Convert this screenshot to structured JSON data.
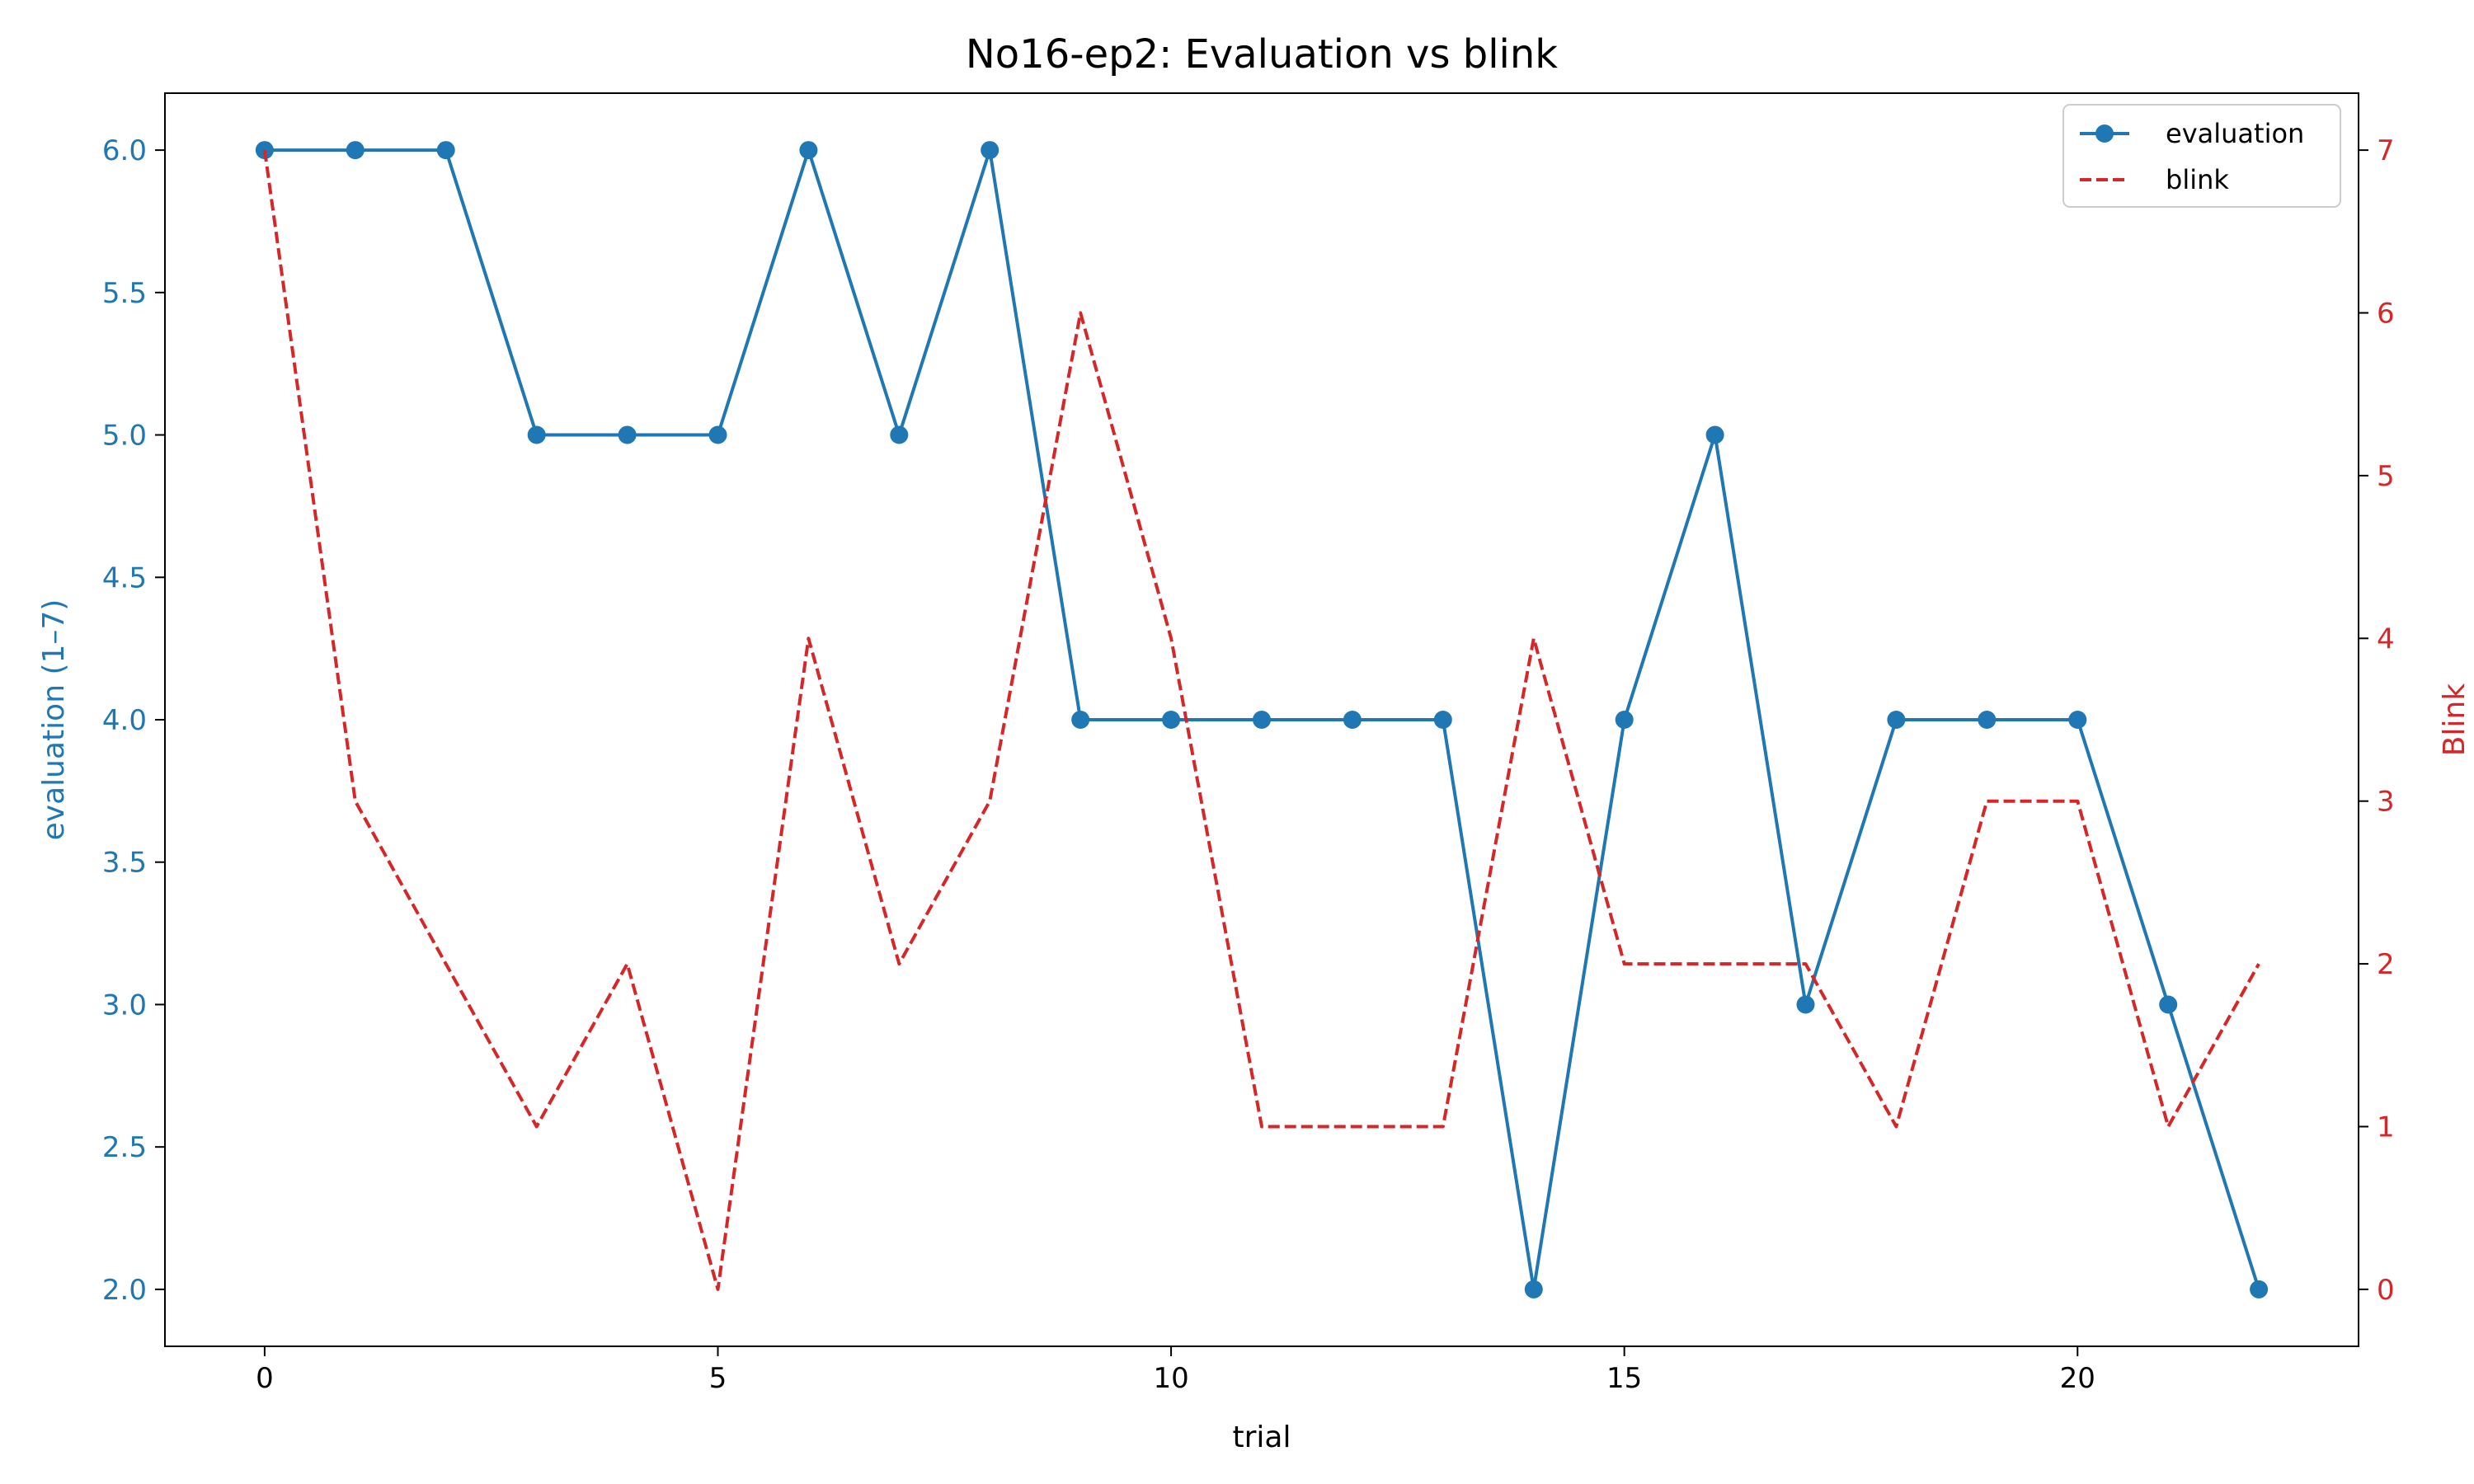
{
  "chart_data": {
    "type": "line",
    "title": "No16-ep2: Evaluation vs blink",
    "xlabel": "trial",
    "ylabel_left": "evaluation (1–7)",
    "ylabel_right": "Blink",
    "x": [
      0,
      1,
      2,
      3,
      4,
      5,
      6,
      7,
      8,
      9,
      10,
      11,
      12,
      13,
      14,
      15,
      16,
      17,
      18,
      19,
      20,
      21,
      22
    ],
    "xlim": [
      -1.1,
      23.1
    ],
    "xticks": [
      0,
      5,
      10,
      15,
      20
    ],
    "ylim_left": [
      1.8,
      6.2
    ],
    "yticks_left": [
      "2.0",
      "2.5",
      "3.0",
      "3.5",
      "4.0",
      "4.5",
      "5.0",
      "5.5",
      "6.0"
    ],
    "ylim_right": [
      -0.35,
      7.35
    ],
    "yticks_right": [
      "0",
      "1",
      "2",
      "3",
      "4",
      "5",
      "6",
      "7"
    ],
    "grid": false,
    "legend_position": "top-right",
    "series": [
      {
        "name": "evaluation",
        "axis": "left",
        "color": "#1f77b4",
        "style": "solid-with-markers",
        "values": [
          6,
          6,
          6,
          5,
          5,
          5,
          6,
          5,
          6,
          4,
          4,
          4,
          4,
          4,
          2,
          4,
          5,
          3,
          4,
          4,
          4,
          3,
          2
        ]
      },
      {
        "name": "blink",
        "axis": "right",
        "color": "#d62728",
        "style": "dashed",
        "values": [
          7,
          3,
          2,
          1,
          2,
          0,
          4,
          2,
          3,
          6,
          4,
          1,
          1,
          1,
          4,
          2,
          2,
          2,
          1,
          3,
          3,
          1,
          2
        ]
      }
    ],
    "colors": {
      "left_axis": "#1f77b4",
      "right_axis": "#d62728"
    }
  }
}
